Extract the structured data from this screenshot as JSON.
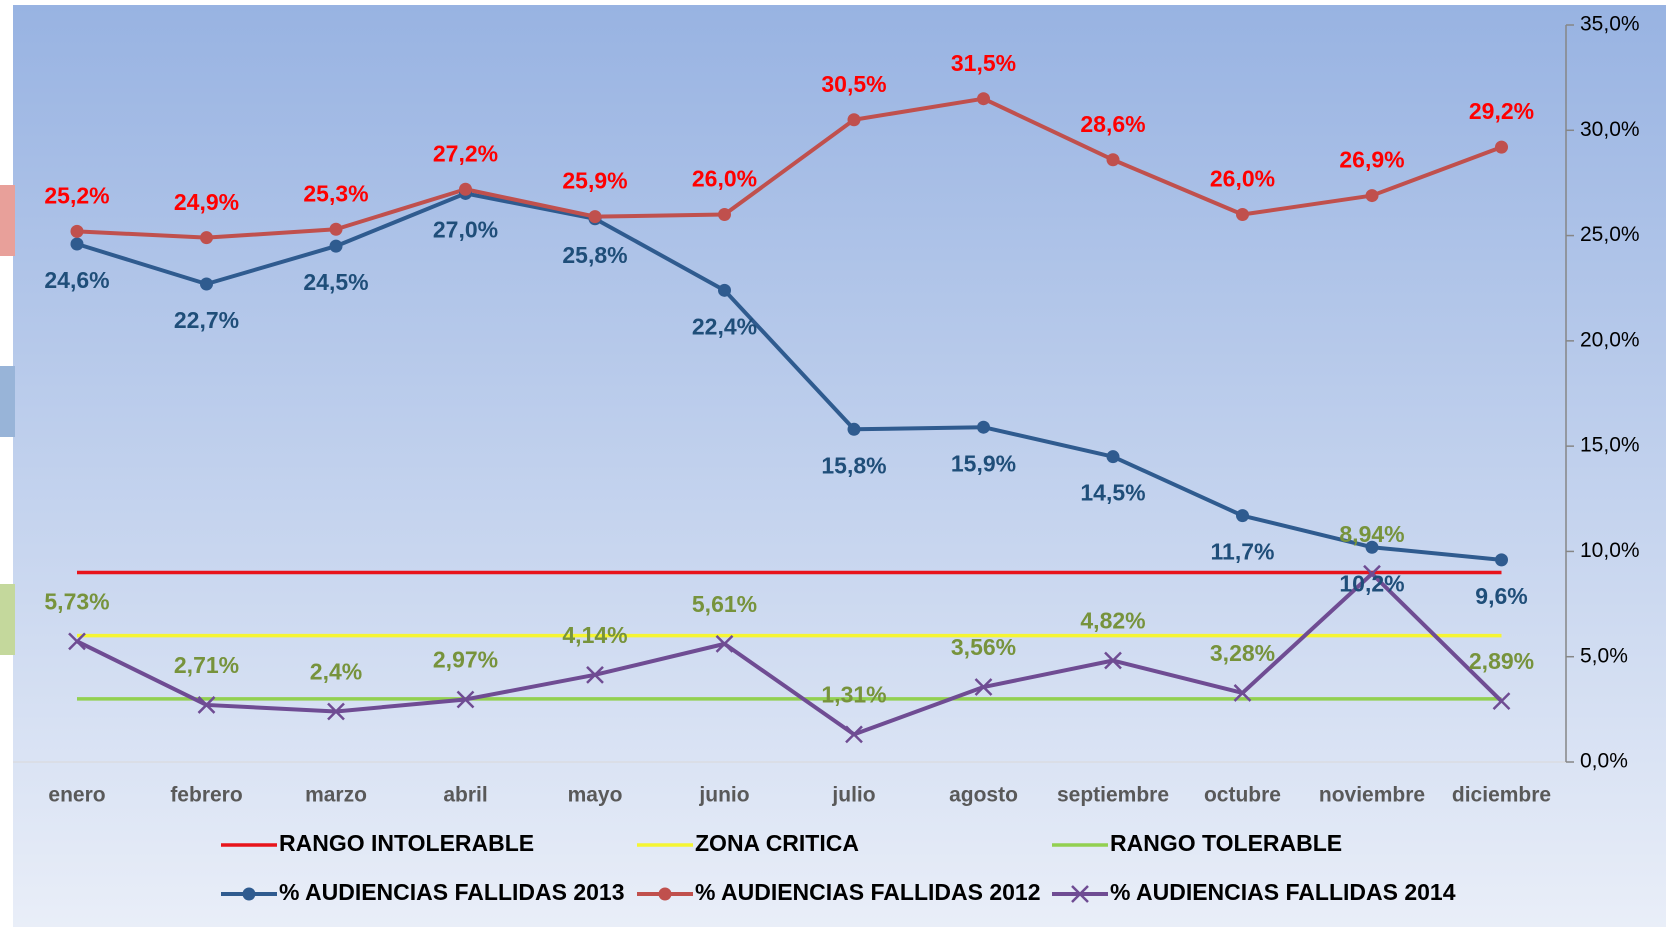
{
  "chart_data": {
    "type": "line",
    "categories": [
      "enero",
      "febrero",
      "marzo",
      "abril",
      "mayo",
      "junio",
      "julio",
      "agosto",
      "septiembre",
      "octubre",
      "noviembre",
      "diciembre"
    ],
    "ylim": [
      0,
      35
    ],
    "yticks": [
      {
        "value": 0,
        "label": "0,0%"
      },
      {
        "value": 5,
        "label": "5,0%"
      },
      {
        "value": 10,
        "label": "10,0%"
      },
      {
        "value": 15,
        "label": "15,0%"
      },
      {
        "value": 20,
        "label": "20,0%"
      },
      {
        "value": 25,
        "label": "25,0%"
      },
      {
        "value": 30,
        "label": "30,0%"
      },
      {
        "value": 35,
        "label": "35,0%"
      }
    ],
    "y_axis_side": "right",
    "series": [
      {
        "name": "RANGO INTOLERABLE",
        "color": "#e8141b",
        "values": [
          9,
          9,
          9,
          9,
          9,
          9,
          9,
          9,
          9,
          9,
          9,
          9
        ]
      },
      {
        "name": "ZONA CRITICA",
        "color": "#f5f532",
        "values": [
          6,
          6,
          6,
          6,
          6,
          6,
          6,
          6,
          6,
          6,
          6,
          6
        ]
      },
      {
        "name": "RANGO TOLERABLE",
        "color": "#92d050",
        "values": [
          3,
          3,
          3,
          3,
          3,
          3,
          3,
          3,
          3,
          3,
          3,
          3
        ]
      },
      {
        "name": "% AUDIENCIAS FALLIDAS 2013",
        "color": "#2f5b8f",
        "marker": "circle",
        "label_color": "#1f4e79",
        "values": [
          24.6,
          22.7,
          24.5,
          27.0,
          25.8,
          22.4,
          15.8,
          15.9,
          14.5,
          11.7,
          10.2,
          9.6
        ],
        "value_labels": [
          "24,6%",
          "22,7%",
          "24,5%",
          "27,0%",
          "25,8%",
          "22,4%",
          "15,8%",
          "15,9%",
          "14,5%",
          "11,7%",
          "10,2%",
          "9,6%"
        ]
      },
      {
        "name": "% AUDIENCIAS FALLIDAS 2012",
        "color": "#c0504d",
        "marker": "circle",
        "label_color": "#ff0000",
        "values": [
          25.2,
          24.9,
          25.3,
          27.2,
          25.9,
          26.0,
          30.5,
          31.5,
          28.6,
          26.0,
          26.9,
          29.2
        ],
        "value_labels": [
          "25,2%",
          "24,9%",
          "25,3%",
          "27,2%",
          "25,9%",
          "26,0%",
          "30,5%",
          "31,5%",
          "28,6%",
          "26,0%",
          "26,9%",
          "29,2%"
        ]
      },
      {
        "name": "% AUDIENCIAS FALLIDAS 2014",
        "color": "#6f4c93",
        "marker": "x",
        "label_color": "#77933c",
        "values": [
          5.73,
          2.71,
          2.4,
          2.97,
          4.14,
          5.61,
          1.31,
          3.56,
          4.82,
          3.28,
          8.94,
          2.89
        ],
        "value_labels": [
          "5,73%",
          "2,71%",
          "2,4%",
          "2,97%",
          "4,14%",
          "5,61%",
          "1,31%",
          "3,56%",
          "4,82%",
          "3,28%",
          "8,94%",
          "2,89%"
        ]
      }
    ]
  }
}
